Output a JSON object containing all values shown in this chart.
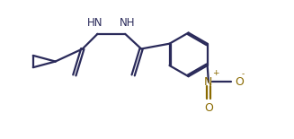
{
  "bg_color": "#ffffff",
  "line_color": "#2a2a5a",
  "no2_color": "#8a6a00",
  "figsize": [
    3.27,
    1.55
  ],
  "dpi": 100,
  "lw": 1.6,
  "font_size": 8.5,
  "font_color": "#2a2a5a",
  "xlim": [
    0,
    11
  ],
  "ylim": [
    -1.8,
    4.2
  ]
}
